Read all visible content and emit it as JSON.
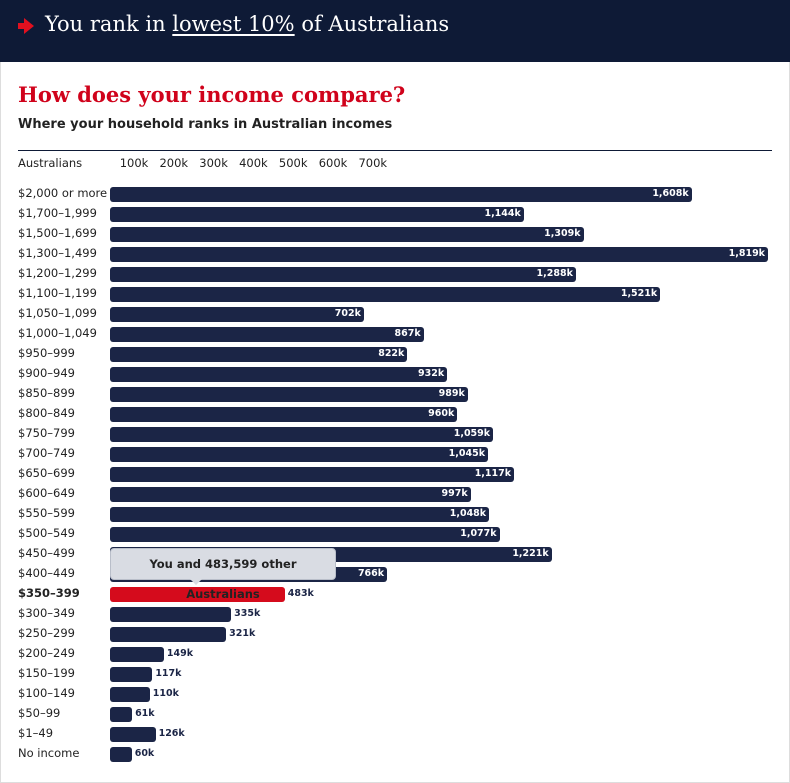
{
  "header": {
    "prefix": "You rank in",
    "highlight": "lowest 10%",
    "suffix": "of Australians"
  },
  "chart_data": {
    "type": "bar",
    "orientation": "horizontal",
    "title": "How does your income compare?",
    "subtitle": "Where your household ranks in Australian incomes",
    "xlabel": "Australians",
    "xticks": [
      "100k",
      "200k",
      "300k",
      "400k",
      "500k",
      "600k",
      "700k"
    ],
    "categories": [
      "$2,000 or more",
      "$1,700–1,999",
      "$1,500–1,699",
      "$1,300–1,499",
      "$1,200–1,299",
      "$1,100–1,199",
      "$1,050–1,099",
      "$1,000–1,049",
      "$950–999",
      "$900–949",
      "$850–899",
      "$800–849",
      "$750–799",
      "$700–749",
      "$650–699",
      "$600–649",
      "$550–599",
      "$500–549",
      "$450–499",
      "$400–449",
      "$350–399",
      "$300–349",
      "$250–299",
      "$200–249",
      "$150–199",
      "$100–149",
      "$50–99",
      "$1–49",
      "No income"
    ],
    "values": [
      1608,
      1144,
      1309,
      1819,
      1288,
      1521,
      702,
      867,
      822,
      932,
      989,
      960,
      1059,
      1045,
      1117,
      997,
      1048,
      1077,
      1221,
      766,
      483,
      335,
      321,
      149,
      117,
      110,
      61,
      126,
      60
    ],
    "value_labels": [
      "1,608k",
      "1,144k",
      "1,309k",
      "1,819k",
      "1,288k",
      "1,521k",
      "702k",
      "867k",
      "822k",
      "932k",
      "989k",
      "960k",
      "1,059k",
      "1,045k",
      "1,117k",
      "997k",
      "1,048k",
      "1,077k",
      "1,221k",
      "766k",
      "483k",
      "335k",
      "321k",
      "149k",
      "117k",
      "110k",
      "61k",
      "126k",
      "60k"
    ],
    "units": "thousands",
    "highlight_index": 20,
    "highlight_color": "#d50b1c",
    "bar_color": "#1b2546",
    "tooltip": "You and 483,599 other Australians"
  }
}
